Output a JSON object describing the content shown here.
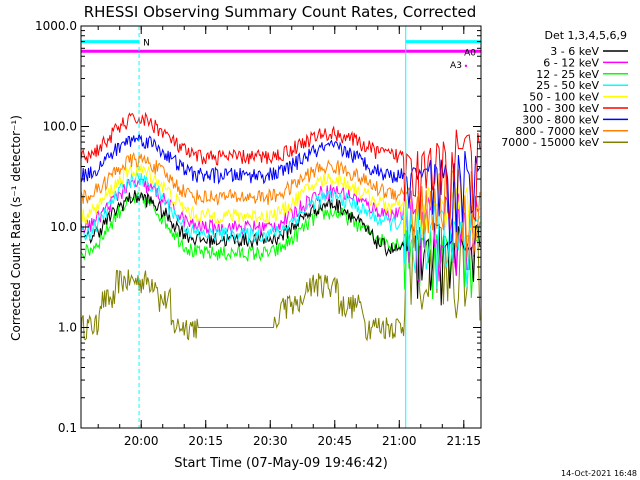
{
  "chart_data": {
    "type": "line",
    "title": "RHESSI Observing Summary Count Rates, Corrected",
    "xlabel": "Start Time (07-May-09 19:46:42)",
    "ylabel": "Corrected Count Rate (s⁻¹ detector⁻¹)",
    "yscale": "log",
    "ylim": [
      0.1,
      1000
    ],
    "xlim_minutes_after_1946": [
      0,
      93
    ],
    "x_tick_labels": [
      "20:00",
      "20:15",
      "20:30",
      "20:45",
      "21:00",
      "21:15"
    ],
    "x_ticks_minutes": [
      14,
      29,
      44,
      59,
      74,
      89
    ],
    "y_tick_labels": [
      "0.1",
      "1.0",
      "10.0",
      "100.0",
      "1000.0"
    ],
    "y_ticks": [
      0.1,
      1,
      10,
      100,
      1000
    ],
    "legend_title": "Det 1,3,4,5,6,9",
    "legend_placement": "right, outside plot",
    "series": [
      {
        "name": "3 - 6 keV",
        "color": "#000000",
        "peak1": 20,
        "trough": 7.5,
        "peak2": 17,
        "bg": 6,
        "alt": 8
      },
      {
        "name": "6 - 12 keV",
        "color": "#ff00ff",
        "peak1": 27,
        "trough": 10,
        "peak2": 23,
        "bg": 13.5,
        "alt": 14
      },
      {
        "name": "12 - 25 keV",
        "color": "#00ff00",
        "peak1": 19,
        "trough": 5.5,
        "peak2": 14,
        "bg": 7,
        "alt": 9
      },
      {
        "name": "25 - 50 keV",
        "color": "#00ffff",
        "peak1": 30,
        "trough": 8.5,
        "peak2": 20,
        "bg": 11,
        "alt": 11
      },
      {
        "name": "50 - 100 keV",
        "color": "#ffff00",
        "peak1": 37,
        "trough": 13,
        "peak2": 30,
        "bg": 16,
        "alt": 18
      },
      {
        "name": "100 - 300 keV",
        "color": "#ff0000",
        "peak1": 120,
        "trough": 50,
        "peak2": 85,
        "bg": 52,
        "alt": 50
      },
      {
        "name": "300 - 800 keV",
        "color": "#0000ff",
        "peak1": 76,
        "trough": 33,
        "peak2": 62,
        "bg": 33,
        "alt": 33
      },
      {
        "name": "800 - 7000 keV",
        "color": "#ff8000",
        "peak1": 47,
        "trough": 20,
        "peak2": 40,
        "bg": 22,
        "alt": 22
      },
      {
        "name": "7000 - 15000 keV",
        "color": "#808000",
        "peak1": 3,
        "trough": 0.7,
        "peak2": 3,
        "bg": 2,
        "alt": 8
      }
    ],
    "annotations": [
      {
        "label": "N",
        "color": "#00ffff",
        "x_start": 0,
        "x_end": 13.5,
        "y": 700
      },
      {
        "label": "A0",
        "color": "#ff00ff",
        "x_start": 0,
        "x_end": 93,
        "y": 560
      },
      {
        "label": "A3",
        "color": "#ff00ff",
        "x_start": 89.5,
        "x_end": 89.5,
        "y": 420
      },
      {
        "label": "",
        "color": "#00ffff",
        "x_start": 75.5,
        "x_end": 93,
        "y": 700
      }
    ],
    "vertical_markers": [
      {
        "x": 13.5,
        "style": "dashed",
        "color": "#00ffff"
      },
      {
        "x": 75.5,
        "style": "solid",
        "color": "#00ffff"
      },
      {
        "x": 93,
        "style": "dashed",
        "color": "#00ffff"
      },
      {
        "x": 0,
        "style": "solid",
        "color": "#00ffff"
      }
    ]
  },
  "footer": {
    "timestamp": "14-Oct-2021 16:48"
  }
}
